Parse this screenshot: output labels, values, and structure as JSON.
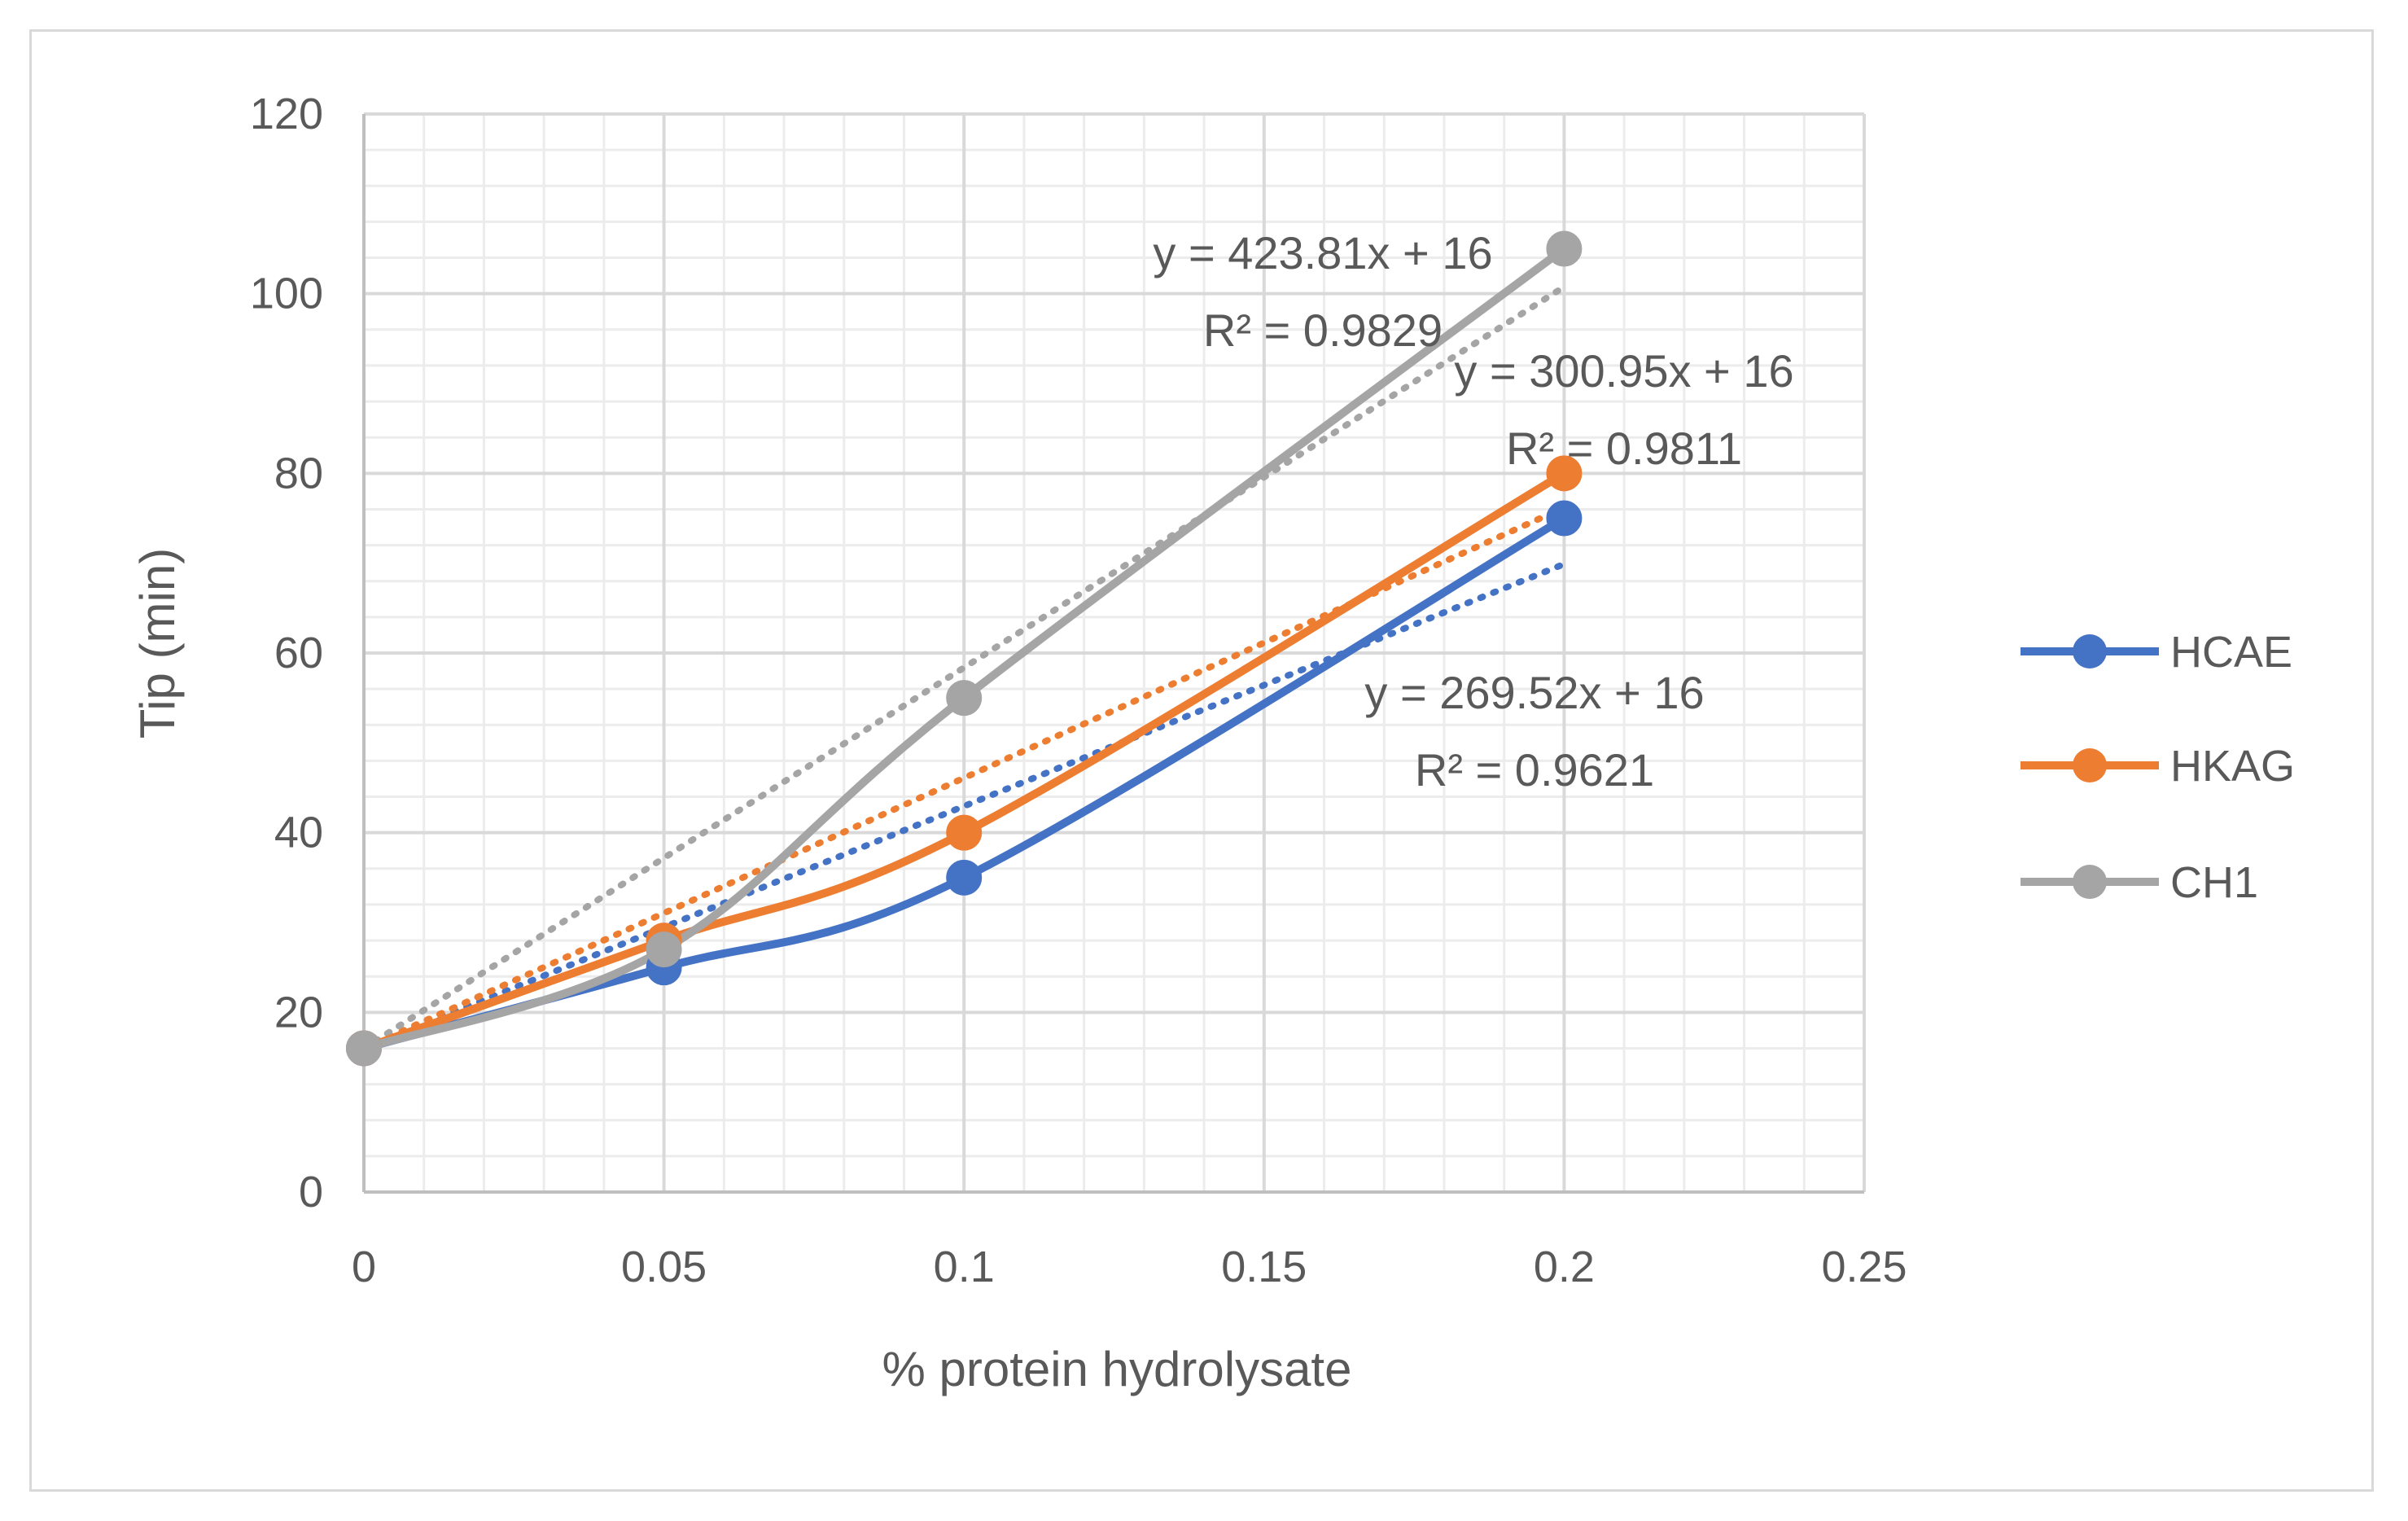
{
  "chart_data": {
    "type": "line",
    "title": "",
    "xlabel": "% protein hydrolysate",
    "ylabel": "Tip (min)",
    "xlim": [
      0,
      0.25
    ],
    "ylim": [
      0,
      120
    ],
    "x_ticks": [
      "0",
      "0.05",
      "0.1",
      "0.15",
      "0.2",
      "0.25"
    ],
    "y_ticks": [
      "0",
      "20",
      "40",
      "60",
      "80",
      "100",
      "120"
    ],
    "grid": true,
    "legend_position": "right",
    "x": [
      0,
      0.05,
      0.1,
      0.2
    ],
    "series": [
      {
        "name": "HCAE",
        "color": "#4472C4",
        "values": [
          16,
          25,
          35,
          75
        ],
        "trendline": {
          "slope": 269.52,
          "intercept": 16,
          "equation": "y = 269.52x + 16",
          "r2": "R² = 0.9621"
        }
      },
      {
        "name": "HKAG",
        "color": "#ED7D31",
        "values": [
          16,
          28,
          40,
          80
        ],
        "trendline": {
          "slope": 300.95,
          "intercept": 16,
          "equation": "y = 300.95x + 16",
          "r2": "R² = 0.9811"
        }
      },
      {
        "name": "CH1",
        "color": "#A5A5A5",
        "values": [
          16,
          27,
          55,
          105
        ],
        "trendline": {
          "slope": 423.81,
          "intercept": 16,
          "equation": "y = 423.81x + 16",
          "r2": "R² = 0.9829"
        }
      }
    ]
  }
}
